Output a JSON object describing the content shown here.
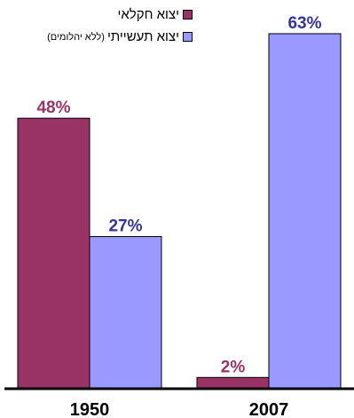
{
  "chart_data": {
    "type": "bar",
    "categories": [
      "1950",
      "2007"
    ],
    "series": [
      {
        "name": "יצוא חקלאי",
        "values": [
          48,
          2
        ],
        "labels": [
          "48%",
          "2%"
        ],
        "color": "#993366"
      },
      {
        "name": "יצוא תעשייתי",
        "note": "(ללא יהלומים)",
        "values": [
          27,
          63
        ],
        "labels": [
          "27%",
          "63%"
        ],
        "color": "#9999ff"
      }
    ],
    "label_colors": [
      "#993366",
      "#333399"
    ],
    "ylim": [
      0,
      70
    ],
    "legend_position": "top-center",
    "grid": false,
    "title": "",
    "xlabel": "",
    "ylabel": ""
  }
}
